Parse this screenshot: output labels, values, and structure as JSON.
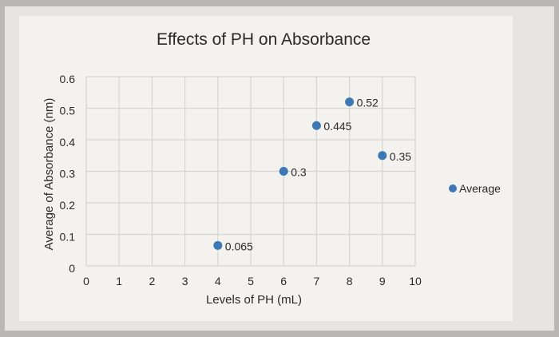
{
  "chart_data": {
    "type": "scatter",
    "title": "Effects of PH on Absorbance",
    "xlabel": "Levels of PH (mL)",
    "ylabel": "Average of Absorbance (nm)",
    "xlim": [
      0,
      10
    ],
    "ylim": [
      0,
      0.6
    ],
    "xticks": [
      "0",
      "1",
      "2",
      "3",
      "4",
      "5",
      "6",
      "7",
      "8",
      "9",
      "10"
    ],
    "yticks": [
      "0",
      "0.1",
      "0.2",
      "0.3",
      "0.4",
      "0.5",
      "0.6"
    ],
    "grid": true,
    "legend_position": "right",
    "series": [
      {
        "name": "Average",
        "color": "#3d78b5",
        "points": [
          {
            "x": 4,
            "y": 0.065,
            "label": "0.065"
          },
          {
            "x": 6,
            "y": 0.3,
            "label": "0.3"
          },
          {
            "x": 7,
            "y": 0.445,
            "label": "0.445"
          },
          {
            "x": 8,
            "y": 0.52,
            "label": "0.52"
          },
          {
            "x": 9,
            "y": 0.35,
            "label": "0.35"
          }
        ]
      }
    ]
  }
}
